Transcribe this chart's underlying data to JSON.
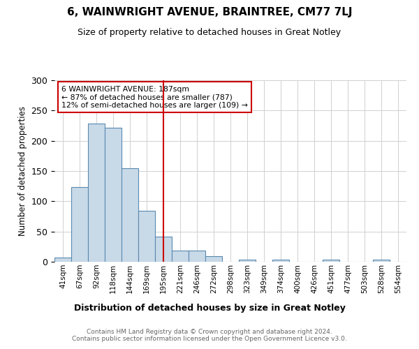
{
  "title": "6, WAINWRIGHT AVENUE, BRAINTREE, CM77 7LJ",
  "subtitle": "Size of property relative to detached houses in Great Notley",
  "xlabel": "Distribution of detached houses by size in Great Notley",
  "ylabel": "Number of detached properties",
  "bins": [
    "41sqm",
    "67sqm",
    "92sqm",
    "118sqm",
    "144sqm",
    "169sqm",
    "195sqm",
    "221sqm",
    "246sqm",
    "272sqm",
    "298sqm",
    "323sqm",
    "349sqm",
    "374sqm",
    "400sqm",
    "426sqm",
    "451sqm",
    "477sqm",
    "503sqm",
    "528sqm",
    "554sqm"
  ],
  "values": [
    7,
    123,
    228,
    222,
    155,
    84,
    42,
    18,
    18,
    9,
    0,
    3,
    0,
    3,
    0,
    0,
    3,
    0,
    0,
    3,
    0
  ],
  "bar_color": "#c8d9e8",
  "bar_edge_color": "#5a8ab0",
  "vline_x": 6,
  "vline_color": "#cc0000",
  "ylim": [
    0,
    300
  ],
  "yticks": [
    0,
    50,
    100,
    150,
    200,
    250,
    300
  ],
  "annotation_text": "6 WAINWRIGHT AVENUE: 187sqm\n← 87% of detached houses are smaller (787)\n12% of semi-detached houses are larger (109) →",
  "annotation_box_color": "#ffffff",
  "annotation_box_edge": "#cc0000",
  "footer": "Contains HM Land Registry data © Crown copyright and database right 2024.\nContains public sector information licensed under the Open Government Licence v3.0.",
  "background_color": "#ffffff",
  "grid_color": "#d0d0d0"
}
